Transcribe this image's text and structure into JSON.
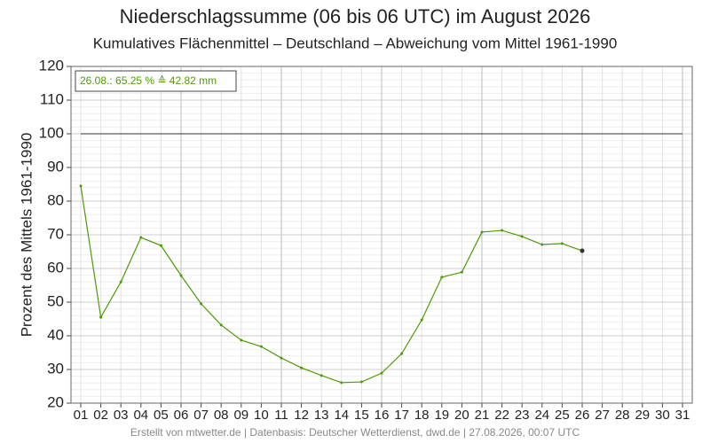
{
  "chart_data": {
    "type": "line",
    "title": "Niederschlagssumme (06 bis 06 UTC) im August 2026",
    "subtitle": "Kumulatives Flächenmittel – Deutschland – Abweichung vom Mittel 1961-1990",
    "y_label": "Prozent des Mittels 1961-1990",
    "annotation": "26.08.: 65.25 % ≙ 42.82 mm",
    "footer": "Erstellt von mtwetter.de | Datenbasis: Deutscher Wetterdienst, dwd.de | 27.08.2026, 00:07 UTC",
    "categories": [
      "01",
      "02",
      "03",
      "04",
      "05",
      "06",
      "07",
      "08",
      "09",
      "10",
      "11",
      "12",
      "13",
      "14",
      "15",
      "16",
      "17",
      "18",
      "19",
      "20",
      "21",
      "22",
      "23",
      "24",
      "25",
      "26",
      "27",
      "28",
      "29",
      "30",
      "31"
    ],
    "series": [
      {
        "name": "Flächenmittel",
        "color": "#4e9a06",
        "values": [
          84.5,
          45.5,
          56.0,
          69.2,
          66.8,
          57.9,
          49.5,
          43.2,
          38.7,
          36.8,
          33.4,
          30.5,
          28.2,
          26.1,
          26.3,
          28.9,
          34.7,
          44.7,
          57.4,
          58.9,
          70.8,
          71.3,
          69.5,
          67.1,
          67.4,
          65.25,
          null,
          null,
          null,
          null,
          null
        ]
      }
    ],
    "reference_line": 100,
    "ylim": [
      20,
      120
    ],
    "yticks": [
      20,
      30,
      40,
      50,
      60,
      70,
      80,
      90,
      100,
      110,
      120
    ],
    "grid": true
  }
}
